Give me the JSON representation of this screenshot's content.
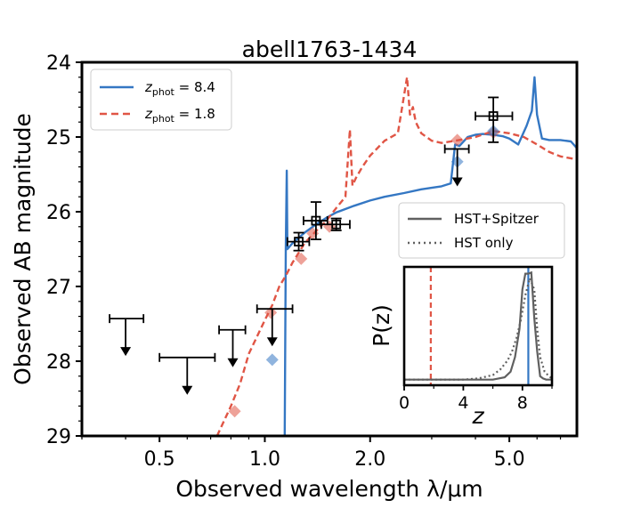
{
  "chart_data": {
    "type": "line",
    "title": "abell1763-1434",
    "xlabel": "Observed wavelength λ/μm",
    "ylabel": "Observed AB magnitude",
    "xscale": "log",
    "xlim": [
      0.3,
      7.8
    ],
    "ylim": [
      29,
      24
    ],
    "y_inverted": true,
    "x_ticks": [
      0.5,
      1.0,
      2.0,
      5.0
    ],
    "x_tick_labels": [
      "0.5",
      "1.0",
      "2.0",
      "5.0"
    ],
    "y_ticks": [
      24,
      25,
      26,
      27,
      28,
      29
    ],
    "y_tick_labels": [
      "24",
      "25",
      "26",
      "27",
      "28",
      "29"
    ],
    "legend_position": "top-left",
    "legend": [
      {
        "label": "z",
        "subscript": "phot",
        "value": " = 8.4",
        "color": "#3477c3",
        "style": "solid"
      },
      {
        "label": "z",
        "subscript": "phot",
        "value": " = 1.8",
        "color": "#e05545",
        "style": "dashed"
      }
    ],
    "series": [
      {
        "name": "z_phot = 8.4",
        "color": "#3477c3",
        "style": "solid",
        "x": [
          1.14,
          1.148,
          1.155,
          1.16,
          1.18,
          1.2,
          1.25,
          1.3,
          1.4,
          1.5,
          1.6,
          1.8,
          2.0,
          2.2,
          2.5,
          2.8,
          3.0,
          3.2,
          3.4,
          3.5,
          3.6,
          3.8,
          4.0,
          4.2,
          4.5,
          4.8,
          5.0,
          5.3,
          5.6,
          5.8,
          5.9,
          6.0,
          6.2,
          6.5,
          7.0,
          7.5,
          7.8
        ],
        "y": [
          29.0,
          26.5,
          25.45,
          26.5,
          26.46,
          26.42,
          26.35,
          26.28,
          26.17,
          26.08,
          26.01,
          25.92,
          25.85,
          25.8,
          25.75,
          25.7,
          25.68,
          25.66,
          25.62,
          25.1,
          25.12,
          25.0,
          24.97,
          24.96,
          24.97,
          24.99,
          25.02,
          25.1,
          24.85,
          24.65,
          24.2,
          24.7,
          25.02,
          25.04,
          25.04,
          25.06,
          25.15
        ]
      },
      {
        "name": "z_phot = 1.8",
        "color": "#e05545",
        "style": "dashed",
        "x": [
          0.73,
          0.8,
          0.85,
          0.9,
          1.0,
          1.05,
          1.1,
          1.15,
          1.2,
          1.25,
          1.3,
          1.4,
          1.5,
          1.6,
          1.7,
          1.75,
          1.78,
          1.82,
          1.9,
          2.0,
          2.2,
          2.4,
          2.55,
          2.6,
          2.65,
          2.7,
          2.8,
          3.0,
          3.2,
          3.5,
          3.8,
          4.0,
          4.5,
          5.0,
          5.5,
          6.0,
          6.5,
          7.0,
          7.8
        ],
        "y": [
          29.0,
          28.6,
          28.3,
          27.9,
          27.45,
          27.25,
          27.0,
          26.85,
          26.68,
          26.55,
          26.42,
          26.26,
          26.12,
          25.95,
          25.8,
          24.9,
          25.65,
          25.55,
          25.4,
          25.25,
          25.05,
          24.95,
          24.2,
          24.7,
          24.6,
          24.8,
          24.95,
          25.05,
          25.08,
          25.05,
          25.02,
          25.0,
          24.92,
          24.95,
          25.0,
          25.1,
          25.2,
          25.26,
          25.3
        ]
      }
    ],
    "model_points_red": {
      "x": [
        0.82,
        1.04,
        1.27,
        1.37,
        1.53,
        3.55,
        4.5
      ],
      "y": [
        28.67,
        27.35,
        26.63,
        26.29,
        26.2,
        25.04,
        24.94
      ]
    },
    "model_points_blue": {
      "x": [
        1.05,
        3.55,
        4.5
      ],
      "y": [
        27.98,
        25.33,
        24.92
      ]
    },
    "detections": [
      {
        "x": 1.25,
        "y": 26.4,
        "xerr": [
          0.09,
          0.09
        ],
        "yerr": [
          0.12,
          0.12
        ]
      },
      {
        "x": 1.4,
        "y": 26.12,
        "xerr": [
          0.11,
          0.11
        ],
        "yerr": [
          0.25,
          0.25
        ]
      },
      {
        "x": 1.6,
        "y": 26.17,
        "xerr": [
          0.15,
          0.15
        ],
        "yerr": [
          0.08,
          0.08
        ]
      },
      {
        "x": 4.5,
        "y": 24.72,
        "xerr": [
          0.5,
          0.6
        ],
        "yerr": [
          0.25,
          0.35
        ]
      }
    ],
    "upper_limits": [
      {
        "x": 0.4,
        "y": 27.43,
        "xerr": [
          0.04,
          0.05
        ]
      },
      {
        "x": 0.6,
        "y": 27.95,
        "xerr": [
          0.1,
          0.12
        ]
      },
      {
        "x": 0.81,
        "y": 27.58,
        "xerr": [
          0.07,
          0.07
        ]
      },
      {
        "x": 1.05,
        "y": 27.3,
        "xerr": [
          0.1,
          0.15
        ]
      },
      {
        "x": 3.55,
        "y": 25.16,
        "xerr": [
          0.28,
          0.28
        ]
      }
    ],
    "inset": {
      "xlabel": "z",
      "ylabel": "P(z)",
      "xlim": [
        0,
        10
      ],
      "ylim": [
        0,
        1.05
      ],
      "x_ticks": [
        0,
        4,
        8
      ],
      "x_tick_labels": [
        "0",
        "4",
        "8"
      ],
      "legend": [
        {
          "label": "HST+Spitzer",
          "color": "#606060",
          "style": "solid"
        },
        {
          "label": "HST only",
          "color": "#606060",
          "style": "dotted"
        }
      ],
      "series": [
        {
          "name": "HST+Spitzer",
          "color": "#606060",
          "style": "solid",
          "x": [
            0,
            2,
            4,
            6,
            6.8,
            7.2,
            7.5,
            7.8,
            8.0,
            8.2,
            8.4,
            8.6,
            8.8,
            9.0,
            9.2,
            9.4,
            9.6,
            9.8,
            10
          ],
          "y": [
            0.05,
            0.05,
            0.05,
            0.05,
            0.07,
            0.12,
            0.25,
            0.5,
            0.85,
            0.99,
            0.99,
            1.0,
            0.6,
            0.3,
            0.08,
            0.06,
            0.05,
            0.05,
            0.05
          ]
        },
        {
          "name": "HST only",
          "color": "#606060",
          "style": "dotted",
          "x": [
            0,
            2,
            4,
            5,
            6,
            6.5,
            7.0,
            7.3,
            7.6,
            7.9,
            8.2,
            8.5,
            8.8,
            9.0,
            9.2,
            9.5,
            9.8,
            10
          ],
          "y": [
            0.05,
            0.05,
            0.05,
            0.06,
            0.09,
            0.14,
            0.22,
            0.3,
            0.42,
            0.58,
            0.8,
            0.95,
            0.85,
            0.5,
            0.25,
            0.12,
            0.08,
            0.06
          ]
        }
      ],
      "vlines": [
        {
          "x": 1.8,
          "color": "#e05545",
          "style": "dashed"
        },
        {
          "x": 8.4,
          "color": "#3477c3",
          "style": "solid"
        }
      ]
    }
  }
}
